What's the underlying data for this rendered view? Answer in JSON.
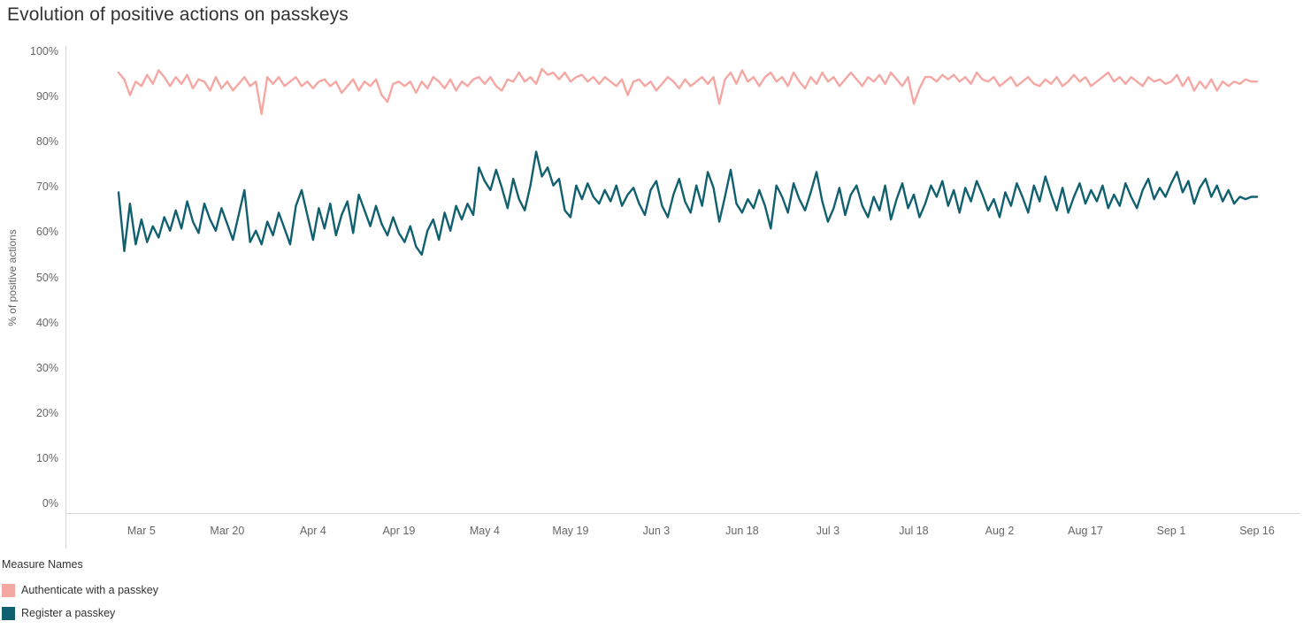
{
  "title": "Evolution of positive actions on passkeys",
  "y_axis_label": "% of positive actions",
  "legend": {
    "title": "Measure Names",
    "items": [
      {
        "label": "Authenticate with a passkey",
        "color": "#f5a8a3"
      },
      {
        "label": "Register a passkey",
        "color": "#11606f"
      }
    ]
  },
  "chart_data": {
    "type": "line",
    "title": "Evolution of positive actions on passkeys",
    "xlabel": "",
    "ylabel": "% of positive actions",
    "ylim": [
      0,
      100
    ],
    "grid": false,
    "legend_position": "bottom-left",
    "x_interval": "daily",
    "x_start": "Mar 1",
    "x_end": "Sep 16",
    "y_ticks": [
      "0%",
      "10%",
      "20%",
      "30%",
      "40%",
      "50%",
      "60%",
      "70%",
      "80%",
      "90%",
      "100%"
    ],
    "x_tick_labels": [
      "Mar 5",
      "Mar 20",
      "Apr 4",
      "Apr 19",
      "May 4",
      "May 19",
      "Jun 3",
      "Jun 18",
      "Jul 3",
      "Jul 18",
      "Aug 2",
      "Aug 17",
      "Sep 1",
      "Sep 16"
    ],
    "x_tick_positions": [
      4,
      19,
      34,
      49,
      64,
      79,
      94,
      109,
      124,
      139,
      154,
      169,
      184,
      199
    ],
    "series": [
      {
        "name": "Authenticate with a passkey",
        "color": "#f5a8a3",
        "values": [
          95.5,
          94,
          90.5,
          93.5,
          92.5,
          95,
          93,
          96,
          94.5,
          92.5,
          94.5,
          93,
          95,
          92,
          94,
          93.5,
          91.5,
          94.5,
          92,
          93.5,
          91.5,
          93,
          94.5,
          92.5,
          93.5,
          86.3,
          94.5,
          93,
          94.5,
          92.5,
          93.5,
          94.5,
          92.5,
          93.5,
          92,
          93.5,
          94,
          92.5,
          93.5,
          91,
          92.5,
          94,
          91.5,
          93.5,
          92.5,
          94,
          90.5,
          89,
          93,
          93.5,
          92.5,
          93.5,
          91,
          93.5,
          92,
          94.5,
          93.5,
          92,
          94,
          91.5,
          93.5,
          92.5,
          94,
          94.5,
          93,
          94.5,
          92.5,
          91.5,
          94,
          93.5,
          95.5,
          93.5,
          94.5,
          93,
          96.3,
          95,
          95.5,
          94,
          95.5,
          93.5,
          94.5,
          95,
          93.5,
          94.5,
          93,
          94.5,
          93.5,
          92.5,
          94,
          90.5,
          93.5,
          94,
          92.5,
          93.5,
          91.5,
          93,
          94.5,
          93.5,
          92,
          94,
          92.5,
          93.5,
          94.5,
          93,
          94.5,
          88.6,
          94,
          95.5,
          93,
          96,
          93.5,
          94.5,
          92.5,
          94.5,
          95.5,
          93.5,
          94.5,
          92.5,
          95.5,
          93.5,
          92,
          94.5,
          93,
          95.5,
          93.5,
          94.5,
          92.5,
          94,
          95.5,
          94,
          92.5,
          94.5,
          93.5,
          95,
          93,
          95.5,
          94,
          92.5,
          94.5,
          88.6,
          92,
          94.5,
          94.5,
          93.5,
          95,
          94,
          95,
          93.5,
          94.5,
          93,
          95.5,
          94,
          93.5,
          94.5,
          92.5,
          93.5,
          94.5,
          92.5,
          93.5,
          94.5,
          93,
          92.5,
          94,
          93,
          94.5,
          92.5,
          93.5,
          95,
          93.5,
          94.5,
          92.5,
          93.5,
          94.5,
          95.5,
          93.5,
          94.5,
          93,
          94.5,
          93.5,
          92.5,
          94.5,
          93.5,
          94,
          93,
          93.5,
          95,
          92.5,
          94.5,
          91.5,
          93.5,
          92,
          94,
          91.5,
          93.5,
          92.5,
          93.5,
          93,
          94,
          93.5,
          93.5
        ]
      },
      {
        "name": "Register a passkey",
        "color": "#11606f",
        "values": [
          69,
          56,
          66.5,
          57.5,
          63,
          58,
          61.5,
          59,
          63.5,
          60.5,
          65,
          61,
          67,
          62.5,
          60,
          66.5,
          63,
          60.5,
          65.5,
          62,
          58.5,
          64,
          69.5,
          58,
          60.5,
          57.5,
          62.5,
          59.5,
          64.5,
          61,
          57.5,
          66,
          69.5,
          64,
          58.5,
          65.5,
          61,
          66.5,
          59.5,
          64,
          67,
          60,
          68.5,
          65,
          61.5,
          66,
          62,
          59.5,
          63.5,
          60,
          58,
          61.5,
          57,
          55.2,
          60.5,
          63,
          58.5,
          64.5,
          60.5,
          66,
          63,
          66.5,
          64,
          74.5,
          71.5,
          69.5,
          74,
          70,
          65.5,
          72,
          67.5,
          65,
          70.5,
          78,
          72.5,
          74.5,
          70.5,
          72,
          65,
          63.5,
          70.5,
          67.5,
          71,
          68,
          66.5,
          69.5,
          67,
          70.5,
          66,
          68.5,
          70,
          66.5,
          64,
          69.5,
          71.5,
          66,
          63.5,
          68.5,
          72,
          67,
          64.5,
          70.5,
          66,
          73.5,
          70,
          62.5,
          68,
          74,
          66.5,
          64.5,
          67.5,
          65.5,
          69.5,
          66,
          61,
          70.5,
          68,
          64.5,
          71,
          67.5,
          65,
          69,
          73.5,
          67,
          62.5,
          65.5,
          70,
          64,
          68.5,
          70.5,
          66,
          63.5,
          68,
          65,
          70.5,
          63,
          67.5,
          71,
          65.5,
          68.5,
          63.5,
          66.5,
          70.5,
          68,
          71.5,
          66,
          69.5,
          64.5,
          70,
          67,
          71.5,
          68.5,
          65,
          67.5,
          63.5,
          69,
          66,
          71,
          68,
          64.5,
          70.5,
          67,
          72.5,
          68.5,
          65,
          70,
          64.5,
          68,
          71,
          66.5,
          69.5,
          67,
          70.5,
          65.5,
          68.5,
          66,
          71,
          68,
          65.5,
          69.5,
          72,
          67.5,
          70,
          68,
          71,
          73.5,
          69,
          71.5,
          66.5,
          70,
          72,
          68,
          70.5,
          67,
          69.5,
          66.5,
          68,
          67.5,
          68,
          68
        ]
      }
    ]
  }
}
